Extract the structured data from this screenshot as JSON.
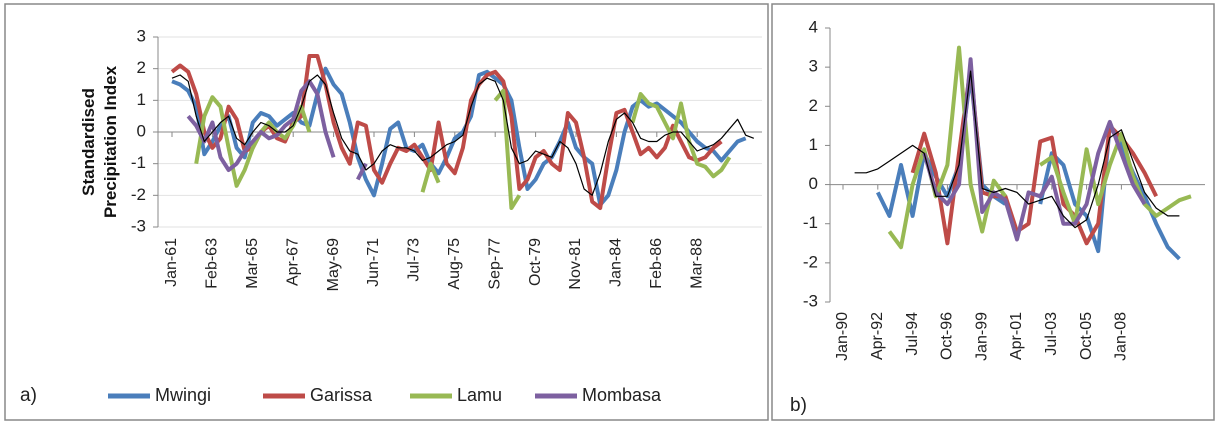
{
  "chart_data": [
    {
      "type": "line",
      "panel_label": "a)",
      "y_label": "Standardised Precipitation Index",
      "ylim": [
        -3,
        3
      ],
      "yticks": [
        -3,
        -2,
        -1,
        0,
        1,
        2,
        3
      ],
      "grid": true,
      "categories": [
        "Jan-61",
        null,
        null,
        null,
        null,
        "Feb-63",
        null,
        null,
        null,
        null,
        "Mar-65",
        null,
        null,
        null,
        null,
        "Apr-67",
        null,
        null,
        null,
        null,
        "May-69",
        null,
        null,
        null,
        null,
        "Jun-71",
        null,
        null,
        null,
        null,
        "Jul-73",
        null,
        null,
        null,
        null,
        "Aug-75",
        null,
        null,
        null,
        null,
        "Sep-77",
        null,
        null,
        null,
        null,
        "Oct-79",
        null,
        null,
        null,
        null,
        "Nov-81",
        null,
        null,
        null,
        null,
        "Jan-84",
        null,
        null,
        null,
        null,
        "Feb-86",
        null,
        null,
        null,
        null,
        "Mar-88",
        null,
        null,
        null,
        null,
        null,
        null,
        null
      ],
      "series": [
        {
          "name": "Mwingi",
          "color": "#4a7ebb",
          "values": [
            1.6,
            1.5,
            1.3,
            0.8,
            -0.7,
            -0.3,
            0.2,
            0.5,
            -0.5,
            -0.8,
            0.3,
            0.6,
            0.5,
            0.2,
            0.4,
            0.6,
            0.3,
            0.2,
            1.2,
            2.0,
            1.5,
            1.2,
            0.3,
            -0.8,
            -1.5,
            -2.0,
            -1.0,
            0.1,
            0.3,
            -0.5,
            -0.6,
            -0.4,
            -1.0,
            -1.3,
            -0.8,
            -0.2,
            0.0,
            0.5,
            1.8,
            1.9,
            1.7,
            1.5,
            1.0,
            -0.5,
            -1.8,
            -1.5,
            -1.0,
            -0.8,
            -0.3,
            0.3,
            -0.5,
            -0.8,
            -1.0,
            -2.3,
            -2.0,
            -1.2,
            0.0,
            0.8,
            1.0,
            0.8,
            0.9,
            0.7,
            0.5,
            0.3,
            0.0,
            -0.3,
            -0.5,
            -0.6,
            -0.9,
            -0.6,
            -0.3,
            -0.2,
            null
          ]
        },
        {
          "name": "Garissa",
          "color": "#be4b48",
          "values": [
            1.9,
            2.1,
            1.9,
            1.2,
            0.0,
            -0.5,
            -0.2,
            0.8,
            0.4,
            -0.6,
            -0.5,
            0.0,
            0.2,
            -0.2,
            -0.3,
            0.3,
            0.5,
            2.4,
            2.4,
            1.5,
            0.3,
            -0.5,
            -1.0,
            0.3,
            0.2,
            -1.2,
            -1.6,
            -1.0,
            -0.5,
            -0.6,
            -0.4,
            -0.8,
            -1.2,
            0.3,
            -1.0,
            -1.3,
            -0.5,
            1.0,
            1.5,
            1.8,
            1.9,
            1.6,
            0.5,
            -1.8,
            -1.5,
            -0.8,
            -0.6,
            -1.0,
            -1.2,
            0.6,
            0.3,
            -0.8,
            -2.2,
            -2.4,
            -0.8,
            0.6,
            0.7,
            0.0,
            -0.7,
            -0.5,
            -0.8,
            -0.5,
            0.2,
            -0.3,
            -0.8,
            -0.9,
            -0.8,
            -0.5,
            -0.3,
            null,
            null,
            null,
            null
          ]
        },
        {
          "name": "Lamu",
          "color": "#98b954",
          "values": [
            null,
            null,
            null,
            -1.0,
            0.5,
            1.1,
            0.8,
            -0.5,
            -1.7,
            -1.2,
            -0.5,
            0.0,
            0.3,
            0.0,
            -0.2,
            0.2,
            0.8,
            0.0,
            null,
            null,
            null,
            null,
            -1.1,
            null,
            null,
            null,
            null,
            null,
            null,
            null,
            null,
            -1.9,
            -1.0,
            -1.6,
            null,
            null,
            null,
            null,
            null,
            null,
            1.0,
            1.3,
            -2.4,
            -2.0,
            null,
            null,
            null,
            null,
            null,
            null,
            null,
            null,
            null,
            null,
            null,
            null,
            null,
            0.3,
            1.2,
            0.9,
            0.8,
            0.3,
            -0.2,
            0.9,
            -0.3,
            -1.0,
            -1.1,
            -1.4,
            -1.2,
            -0.8,
            null,
            null,
            null
          ]
        },
        {
          "name": "Mombasa",
          "color": "#7d60a0",
          "values": [
            null,
            null,
            0.5,
            0.2,
            -0.3,
            0.3,
            -0.8,
            -1.2,
            -1.0,
            -0.6,
            -0.3,
            0.0,
            -0.2,
            -0.1,
            0.2,
            0.4,
            1.3,
            1.6,
            1.2,
            0.0,
            -0.8,
            null,
            null,
            -1.5,
            -1.0,
            null,
            null,
            0.6,
            null,
            null,
            null,
            null,
            null,
            null,
            null,
            null,
            null,
            null,
            null,
            null,
            null,
            null,
            null,
            null,
            null,
            null,
            null,
            null,
            1.6,
            null,
            null,
            null,
            null,
            null,
            null,
            null,
            null,
            null,
            null,
            null,
            null,
            null,
            null,
            null,
            null,
            null,
            null,
            null,
            null,
            -0.2,
            null,
            null,
            null
          ]
        }
      ],
      "trend": {
        "color": "#000000",
        "values": [
          1.7,
          1.8,
          1.6,
          0.5,
          -0.3,
          0.0,
          0.3,
          0.5,
          -0.2,
          -0.4,
          0.0,
          0.3,
          0.2,
          0.0,
          0.0,
          0.2,
          0.8,
          1.6,
          1.8,
          1.5,
          0.6,
          -0.2,
          -0.6,
          -0.7,
          -1.2,
          -1.0,
          -0.6,
          -0.4,
          -0.5,
          -0.5,
          -0.6,
          -0.9,
          -0.8,
          -0.6,
          -0.4,
          -0.3,
          -0.1,
          0.8,
          1.5,
          1.7,
          1.6,
          1.0,
          -0.5,
          -1.0,
          -0.9,
          -0.6,
          -0.7,
          -0.8,
          -0.3,
          -0.5,
          -1.0,
          -1.8,
          -2.0,
          -1.3,
          -0.3,
          0.4,
          0.6,
          0.3,
          -0.2,
          -0.3,
          -0.3,
          -0.1,
          0.0,
          0.0,
          -0.3,
          -0.6,
          -0.5,
          -0.4,
          -0.2,
          0.1,
          0.4,
          -0.1,
          -0.2
        ]
      }
    },
    {
      "type": "line",
      "panel_label": "b)",
      "ylim": [
        -3,
        4
      ],
      "yticks": [
        -3,
        -2,
        -1,
        0,
        1,
        2,
        3,
        4
      ],
      "grid": false,
      "categories": [
        "Jan-90",
        null,
        null,
        "Apr-92",
        null,
        null,
        "Jul-94",
        null,
        null,
        "Oct-96",
        null,
        null,
        "Jan-99",
        null,
        null,
        "Apr-01",
        null,
        null,
        "Jul-03",
        null,
        null,
        "Oct-05",
        null,
        null,
        "Jan-08",
        null,
        null,
        null,
        null,
        null,
        null
      ],
      "series": [
        {
          "color": "#4a7ebb",
          "values": [
            null,
            null,
            null,
            -0.2,
            -0.8,
            0.5,
            -0.8,
            0.8,
            0.2,
            -0.3,
            0.5,
            2.8,
            0.0,
            -0.3,
            -0.5,
            null,
            null,
            -0.5,
            0.8,
            0.5,
            -0.5,
            -0.8,
            -1.7,
            1.5,
            1.0,
            0.3,
            -0.3,
            -1.0,
            -1.6,
            -1.9,
            null
          ]
        },
        {
          "color": "#be4b48",
          "values": [
            null,
            null,
            null,
            null,
            null,
            null,
            0.3,
            1.3,
            0.3,
            -1.5,
            0.8,
            3.0,
            -0.2,
            -0.3,
            -0.3,
            -1.2,
            -1.0,
            1.1,
            1.2,
            -0.5,
            -0.8,
            -1.5,
            -1.0,
            1.5,
            1.2,
            0.8,
            0.3,
            -0.3,
            null,
            null,
            null
          ]
        },
        {
          "color": "#98b954",
          "values": [
            null,
            null,
            null,
            null,
            -1.2,
            -1.6,
            0.0,
            0.9,
            -0.3,
            0.5,
            3.5,
            0.0,
            -1.2,
            0.1,
            -0.3,
            null,
            null,
            0.5,
            0.7,
            -0.2,
            -1.0,
            0.9,
            -0.5,
            0.5,
            1.3,
            0.2,
            -0.5,
            -0.8,
            -0.6,
            -0.4,
            -0.3
          ]
        },
        {
          "color": "#7d60a0",
          "values": [
            null,
            null,
            null,
            null,
            null,
            null,
            null,
            0.8,
            -0.2,
            -0.5,
            0.0,
            3.2,
            -0.7,
            -0.2,
            -0.4,
            -1.4,
            -0.2,
            -0.3,
            0.2,
            -1.0,
            -1.0,
            -0.5,
            0.8,
            1.6,
            0.8,
            0.0,
            -0.5,
            null,
            null,
            null,
            null
          ]
        }
      ],
      "trend": {
        "color": "#000000",
        "values": [
          null,
          0.3,
          0.3,
          0.4,
          0.6,
          0.8,
          1.0,
          0.8,
          -0.3,
          -0.3,
          0.5,
          2.9,
          -0.1,
          -0.2,
          -0.1,
          -0.2,
          -0.5,
          -0.4,
          -0.3,
          -0.8,
          -1.1,
          -0.9,
          0.0,
          1.2,
          1.4,
          0.6,
          -0.2,
          -0.6,
          -0.8,
          -0.8,
          null
        ]
      }
    }
  ]
}
